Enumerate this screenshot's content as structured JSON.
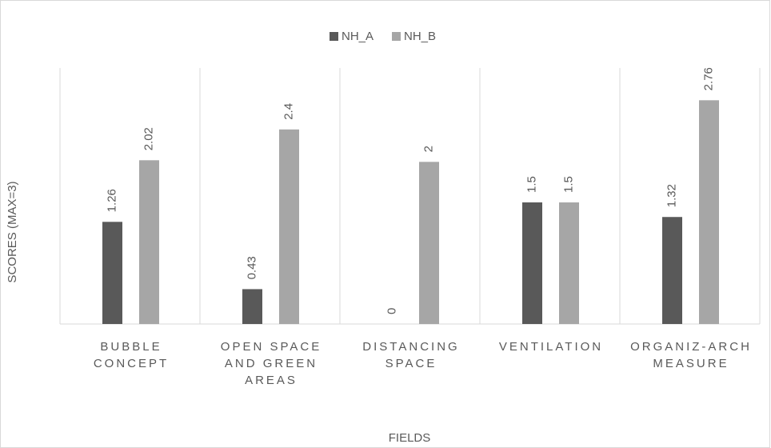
{
  "chart_data": {
    "type": "bar",
    "categories": [
      "BUBBLE CONCEPT",
      "OPEN SPACE AND GREEN AREAS",
      "DISTANCING SPACE",
      "VENTILATION",
      "ORGANIZ-ARCH MEASURE"
    ],
    "series": [
      {
        "name": "NH_A",
        "color": "#595959",
        "values": [
          1.26,
          0.43,
          0,
          1.5,
          1.32
        ]
      },
      {
        "name": "NH_B",
        "color": "#a6a6a6",
        "values": [
          2.02,
          2.4,
          2,
          1.5,
          2.76
        ]
      }
    ],
    "y_label": "SCORES (MAX=3)",
    "x_label": "FIELDS",
    "ylim": [
      0,
      3
    ],
    "legend": "top"
  }
}
